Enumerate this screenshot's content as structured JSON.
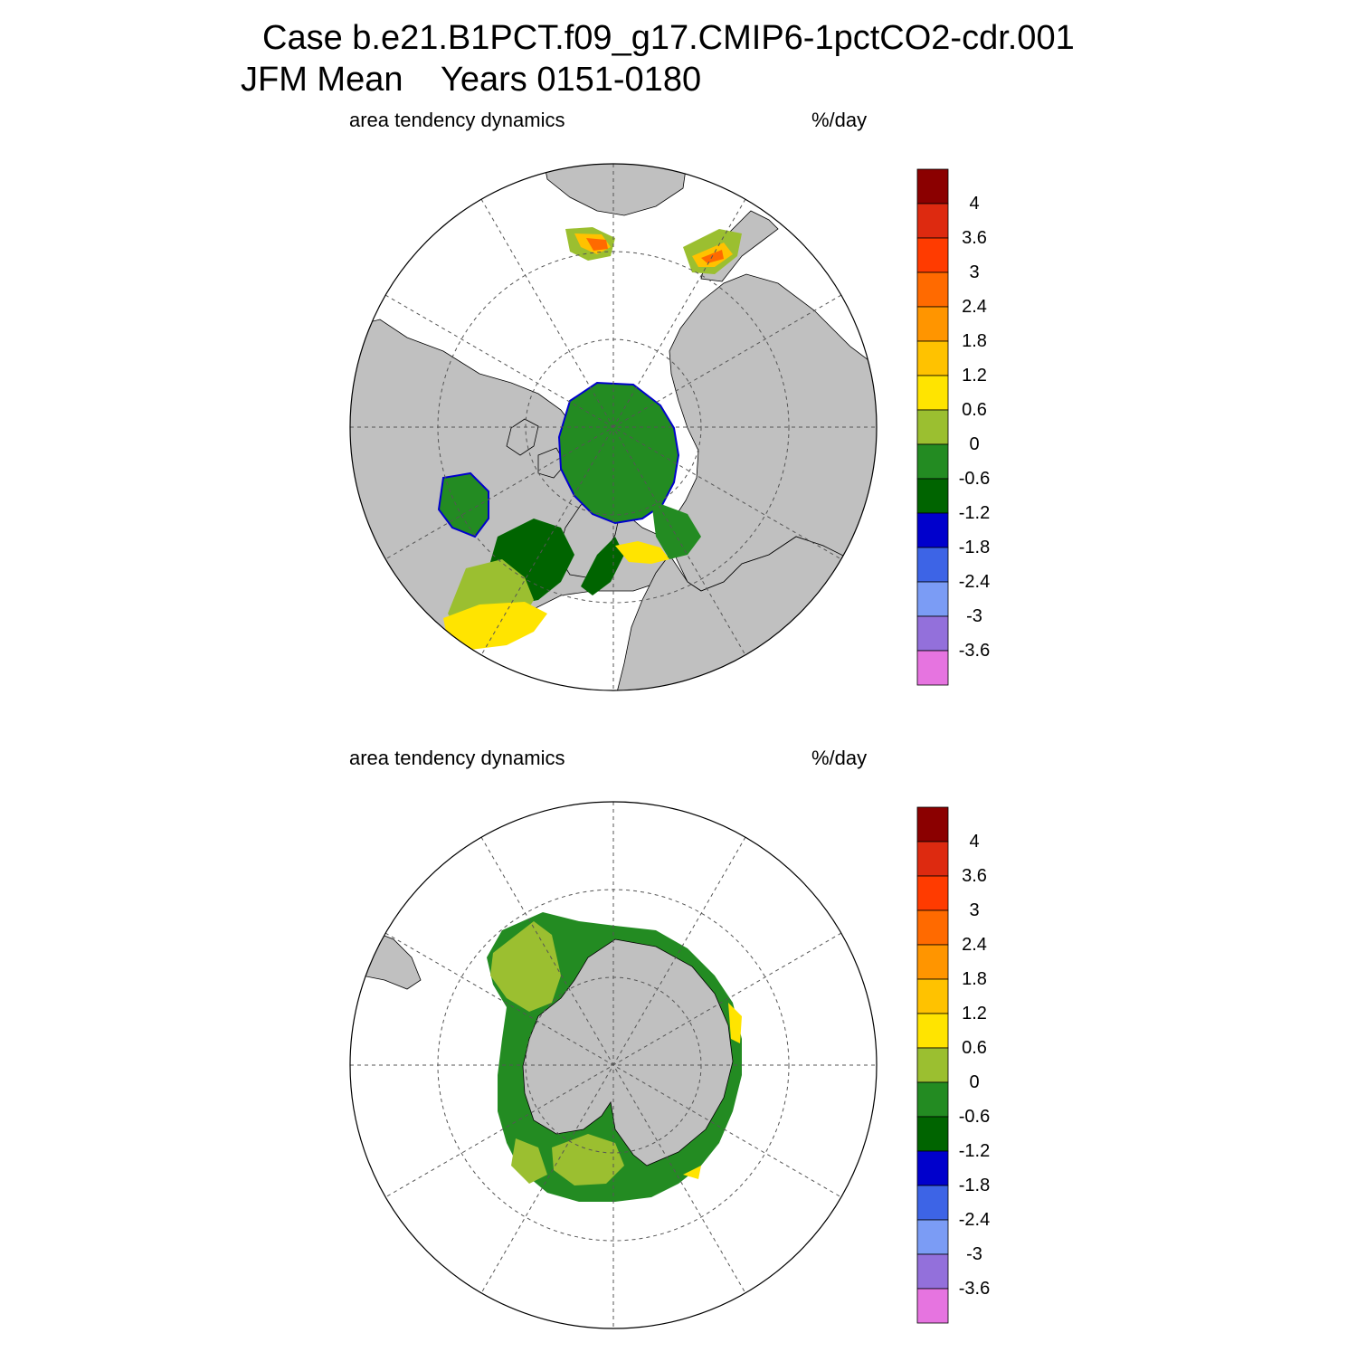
{
  "title_line1": "Case b.e21.B1PCT.f09_g17.CMIP6-1pctCO2-cdr.001",
  "title_line2": "JFM Mean    Years 0151-0180",
  "panels": [
    {
      "hemisphere": "north",
      "variable_label": "area tendency dynamics",
      "units_label": "%/day"
    },
    {
      "hemisphere": "south",
      "variable_label": "area tendency dynamics",
      "units_label": "%/day"
    }
  ],
  "colorbar": {
    "labels": [
      "4",
      "3.6",
      "3",
      "2.4",
      "1.8",
      "1.2",
      "0.6",
      "0",
      "-0.6",
      "-1.2",
      "-1.8",
      "-2.4",
      "-3",
      "-3.6"
    ],
    "colors": [
      "#8b0000",
      "#dd2a10",
      "#ff3b00",
      "#ff6a00",
      "#ff9500",
      "#ffc200",
      "#ffe400",
      "#9bbf30",
      "#238b22",
      "#006400",
      "#0000cc",
      "#3d64e6",
      "#7b9cf5",
      "#9370db",
      "#e674e0"
    ]
  },
  "map_colors": {
    "land": "#c0c0c0",
    "ocean": "#ffffff",
    "grid": "#555555"
  }
}
